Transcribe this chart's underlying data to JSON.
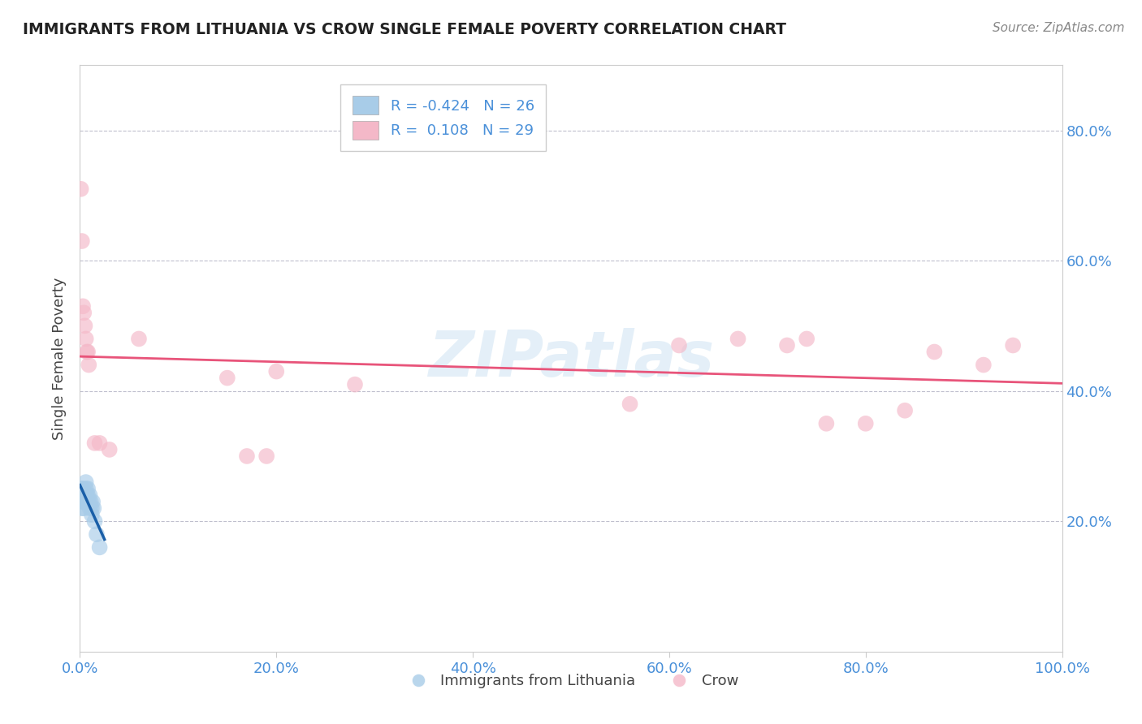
{
  "title": "IMMIGRANTS FROM LITHUANIA VS CROW SINGLE FEMALE POVERTY CORRELATION CHART",
  "source": "Source: ZipAtlas.com",
  "ylabel": "Single Female Poverty",
  "watermark": "ZIPatlas",
  "legend_blue_r": "-0.424",
  "legend_blue_n": "26",
  "legend_pink_r": "0.108",
  "legend_pink_n": "29",
  "blue_scatter_x": [
    0.001,
    0.002,
    0.002,
    0.003,
    0.003,
    0.004,
    0.004,
    0.005,
    0.005,
    0.006,
    0.006,
    0.007,
    0.007,
    0.008,
    0.008,
    0.009,
    0.01,
    0.01,
    0.011,
    0.012,
    0.012,
    0.013,
    0.014,
    0.015,
    0.017,
    0.02
  ],
  "blue_scatter_y": [
    0.25,
    0.22,
    0.24,
    0.23,
    0.25,
    0.24,
    0.22,
    0.23,
    0.24,
    0.25,
    0.26,
    0.24,
    0.23,
    0.24,
    0.25,
    0.23,
    0.22,
    0.24,
    0.23,
    0.22,
    0.21,
    0.23,
    0.22,
    0.2,
    0.18,
    0.16
  ],
  "pink_scatter_x": [
    0.001,
    0.002,
    0.003,
    0.004,
    0.005,
    0.006,
    0.007,
    0.008,
    0.009,
    0.015,
    0.02,
    0.03,
    0.06,
    0.15,
    0.17,
    0.19,
    0.2,
    0.28,
    0.56,
    0.61,
    0.67,
    0.72,
    0.74,
    0.76,
    0.8,
    0.84,
    0.87,
    0.92,
    0.95
  ],
  "pink_scatter_y": [
    0.71,
    0.63,
    0.53,
    0.52,
    0.5,
    0.48,
    0.46,
    0.46,
    0.44,
    0.32,
    0.32,
    0.31,
    0.48,
    0.42,
    0.3,
    0.3,
    0.43,
    0.41,
    0.38,
    0.47,
    0.48,
    0.47,
    0.48,
    0.35,
    0.35,
    0.37,
    0.46,
    0.44,
    0.47
  ],
  "xlim": [
    0.0,
    1.0
  ],
  "ylim": [
    0.0,
    0.9
  ],
  "xtick_vals": [
    0.0,
    0.2,
    0.4,
    0.6,
    0.8,
    1.0
  ],
  "xtick_labels": [
    "0.0%",
    "20.0%",
    "40.0%",
    "60.0%",
    "80.0%",
    "100.0%"
  ],
  "ytick_vals": [
    0.2,
    0.4,
    0.6,
    0.8
  ],
  "ytick_labels": [
    "20.0%",
    "40.0%",
    "60.0%",
    "80.0%"
  ],
  "blue_color": "#a8cce8",
  "pink_color": "#f4b8c8",
  "blue_line_color": "#1a5fa8",
  "pink_line_color": "#e8547a",
  "blue_line_dash": false,
  "grid_color": "#b8b8c8",
  "background_color": "#ffffff",
  "title_color": "#222222",
  "source_color": "#888888",
  "tick_color": "#4a90d9",
  "legend_text_color": "#4a90d9",
  "ylabel_color": "#444444"
}
